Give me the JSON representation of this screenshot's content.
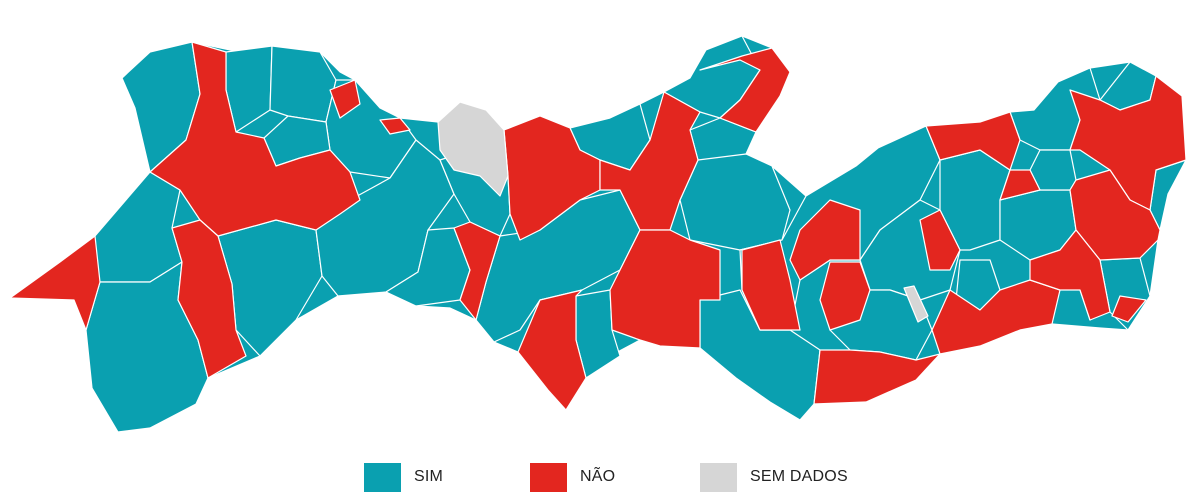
{
  "colors": {
    "sim": "#0aa0b0",
    "nao": "#e3261f",
    "sem_dados": "#d6d6d6",
    "border": "#ffffff"
  },
  "legend": [
    {
      "key": "sim",
      "label": "SIM",
      "color": "#0aa0b0"
    },
    {
      "key": "nao",
      "label": "NÃO",
      "color": "#e3261f"
    },
    {
      "key": "sem_dados",
      "label": "SEM DADOS",
      "color": "#d6d6d6"
    }
  ]
}
